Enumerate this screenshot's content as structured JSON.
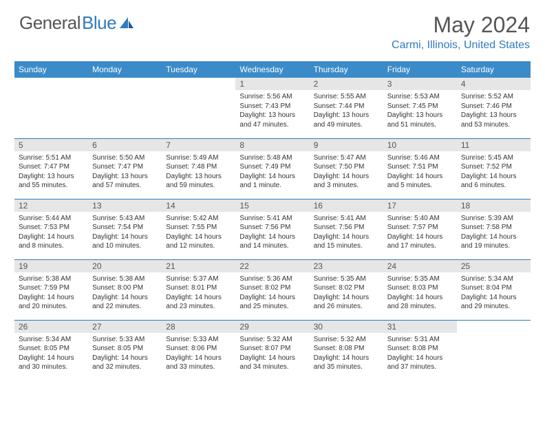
{
  "branding": {
    "logo_part1": "General",
    "logo_part2": "Blue"
  },
  "header": {
    "month_title": "May 2024",
    "location": "Carmi, Illinois, United States"
  },
  "colors": {
    "header_bg": "#3b8bc9",
    "header_text": "#ffffff",
    "accent": "#2f7bbf",
    "daynum_bg": "#e6e6e6",
    "text": "#333333",
    "muted": "#555555"
  },
  "weekdays": [
    "Sunday",
    "Monday",
    "Tuesday",
    "Wednesday",
    "Thursday",
    "Friday",
    "Saturday"
  ],
  "month": {
    "year": 2024,
    "month": 5,
    "first_weekday": 3,
    "days_in_month": 31
  },
  "days": {
    "1": {
      "sunrise": "5:56 AM",
      "sunset": "7:43 PM",
      "daylight": "13 hours and 47 minutes."
    },
    "2": {
      "sunrise": "5:55 AM",
      "sunset": "7:44 PM",
      "daylight": "13 hours and 49 minutes."
    },
    "3": {
      "sunrise": "5:53 AM",
      "sunset": "7:45 PM",
      "daylight": "13 hours and 51 minutes."
    },
    "4": {
      "sunrise": "5:52 AM",
      "sunset": "7:46 PM",
      "daylight": "13 hours and 53 minutes."
    },
    "5": {
      "sunrise": "5:51 AM",
      "sunset": "7:47 PM",
      "daylight": "13 hours and 55 minutes."
    },
    "6": {
      "sunrise": "5:50 AM",
      "sunset": "7:47 PM",
      "daylight": "13 hours and 57 minutes."
    },
    "7": {
      "sunrise": "5:49 AM",
      "sunset": "7:48 PM",
      "daylight": "13 hours and 59 minutes."
    },
    "8": {
      "sunrise": "5:48 AM",
      "sunset": "7:49 PM",
      "daylight": "14 hours and 1 minute."
    },
    "9": {
      "sunrise": "5:47 AM",
      "sunset": "7:50 PM",
      "daylight": "14 hours and 3 minutes."
    },
    "10": {
      "sunrise": "5:46 AM",
      "sunset": "7:51 PM",
      "daylight": "14 hours and 5 minutes."
    },
    "11": {
      "sunrise": "5:45 AM",
      "sunset": "7:52 PM",
      "daylight": "14 hours and 6 minutes."
    },
    "12": {
      "sunrise": "5:44 AM",
      "sunset": "7:53 PM",
      "daylight": "14 hours and 8 minutes."
    },
    "13": {
      "sunrise": "5:43 AM",
      "sunset": "7:54 PM",
      "daylight": "14 hours and 10 minutes."
    },
    "14": {
      "sunrise": "5:42 AM",
      "sunset": "7:55 PM",
      "daylight": "14 hours and 12 minutes."
    },
    "15": {
      "sunrise": "5:41 AM",
      "sunset": "7:56 PM",
      "daylight": "14 hours and 14 minutes."
    },
    "16": {
      "sunrise": "5:41 AM",
      "sunset": "7:56 PM",
      "daylight": "14 hours and 15 minutes."
    },
    "17": {
      "sunrise": "5:40 AM",
      "sunset": "7:57 PM",
      "daylight": "14 hours and 17 minutes."
    },
    "18": {
      "sunrise": "5:39 AM",
      "sunset": "7:58 PM",
      "daylight": "14 hours and 19 minutes."
    },
    "19": {
      "sunrise": "5:38 AM",
      "sunset": "7:59 PM",
      "daylight": "14 hours and 20 minutes."
    },
    "20": {
      "sunrise": "5:38 AM",
      "sunset": "8:00 PM",
      "daylight": "14 hours and 22 minutes."
    },
    "21": {
      "sunrise": "5:37 AM",
      "sunset": "8:01 PM",
      "daylight": "14 hours and 23 minutes."
    },
    "22": {
      "sunrise": "5:36 AM",
      "sunset": "8:02 PM",
      "daylight": "14 hours and 25 minutes."
    },
    "23": {
      "sunrise": "5:35 AM",
      "sunset": "8:02 PM",
      "daylight": "14 hours and 26 minutes."
    },
    "24": {
      "sunrise": "5:35 AM",
      "sunset": "8:03 PM",
      "daylight": "14 hours and 28 minutes."
    },
    "25": {
      "sunrise": "5:34 AM",
      "sunset": "8:04 PM",
      "daylight": "14 hours and 29 minutes."
    },
    "26": {
      "sunrise": "5:34 AM",
      "sunset": "8:05 PM",
      "daylight": "14 hours and 30 minutes."
    },
    "27": {
      "sunrise": "5:33 AM",
      "sunset": "8:05 PM",
      "daylight": "14 hours and 32 minutes."
    },
    "28": {
      "sunrise": "5:33 AM",
      "sunset": "8:06 PM",
      "daylight": "14 hours and 33 minutes."
    },
    "29": {
      "sunrise": "5:32 AM",
      "sunset": "8:07 PM",
      "daylight": "14 hours and 34 minutes."
    },
    "30": {
      "sunrise": "5:32 AM",
      "sunset": "8:08 PM",
      "daylight": "14 hours and 35 minutes."
    },
    "31": {
      "sunrise": "5:31 AM",
      "sunset": "8:08 PM",
      "daylight": "14 hours and 37 minutes."
    }
  },
  "labels": {
    "sunrise_prefix": "Sunrise: ",
    "sunset_prefix": "Sunset: ",
    "daylight_prefix": "Daylight: "
  }
}
